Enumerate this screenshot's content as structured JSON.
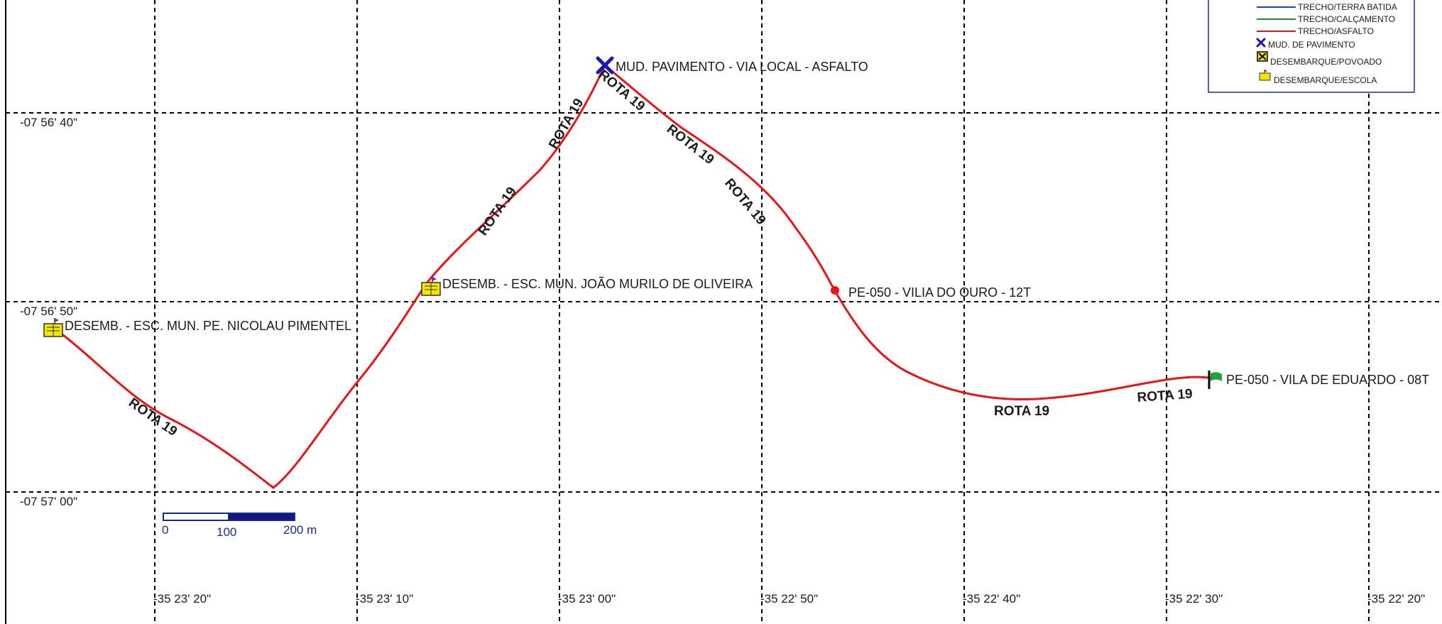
{
  "map": {
    "grid_lon_labels": [
      "-35 23' 20\"",
      "-35 23' 10\"",
      "-35 23' 00\"",
      "-35 22' 50\"",
      "-35 22' 40\"",
      "-35 22' 30\"",
      "-35 22' 20\""
    ],
    "grid_lat_labels": [
      "-07 56' 40\"",
      "-07 56' 50\"",
      "-07 57' 00\""
    ],
    "route_label": "ROTA 19",
    "route_color": "#e8141c",
    "points": {
      "school_1": "DESEMB. - ESC. MUN. PE. NICOLAU PIMENTEL",
      "school_2": "DESEMB. - ESC. MUN. JOÃO MURILO DE OLIVEIRA",
      "pavement_change": "MUD. PAVIMENTO - VIA LOCAL - ASFALTO",
      "stop_oiro": "PE-050 - VILIA DO OURO - 12T",
      "stop_eduardo": "PE-050 - VILA DE EDUARDO - 08T"
    },
    "icons": {
      "school": "school-stop-icon",
      "pavement_change": "x-marker-icon",
      "waypoint": "red-dot-icon",
      "endpoint": "green-flag-icon"
    }
  },
  "scale_bar": {
    "labels": [
      "0",
      "100",
      "200 m"
    ]
  },
  "legend": {
    "items": [
      {
        "label": "TRECHO/TERRA BATIDA",
        "color": "#2040e0",
        "symbol": "line"
      },
      {
        "label": "TRECHO/CALÇAMENTO",
        "color": "#2a8a2a",
        "symbol": "line"
      },
      {
        "label": "TRECHO/ASFALTO",
        "color": "#e8141c",
        "symbol": "line"
      },
      {
        "label": "MUD. DE PAVIMENTO",
        "color": "#1a1ab0",
        "symbol": "x-marker-icon"
      },
      {
        "label": "DESEMBARQUE/POVOADO",
        "color": "#f2e600",
        "symbol": "village-stop-icon"
      },
      {
        "label": "DESEMBARQUE/ESCOLA",
        "color": "#f2e600",
        "symbol": "school-stop-icon"
      }
    ]
  }
}
